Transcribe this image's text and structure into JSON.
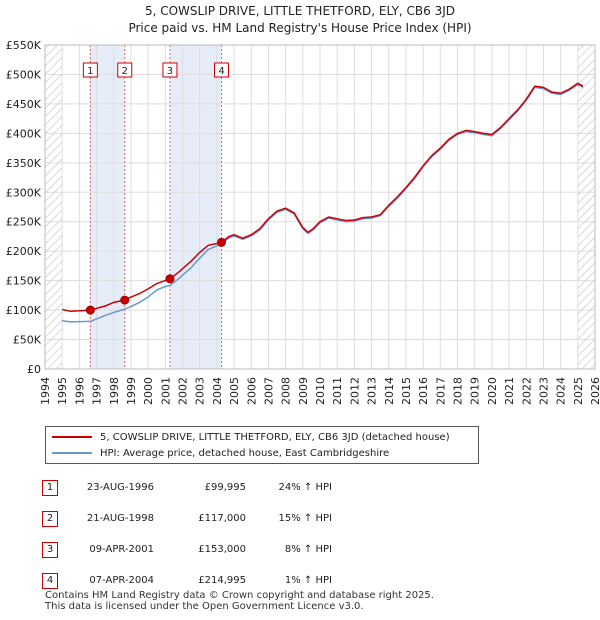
{
  "title_line1": "5, COWSLIP DRIVE, LITTLE THETFORD, ELY, CB6 3JD",
  "title_line2": "Price paid vs. HM Land Registry's House Price Index (HPI)",
  "chart_data": {
    "type": "line",
    "title": "5, COWSLIP DRIVE, LITTLE THETFORD, ELY, CB6 3JD - Price paid vs. HM Land Registry's House Price Index (HPI)",
    "xlim": [
      1994.0,
      2026.0
    ],
    "ylim": [
      0,
      550000
    ],
    "x_ticks": [
      1994,
      1995,
      1996,
      1997,
      1998,
      1999,
      2000,
      2001,
      2002,
      2003,
      2004,
      2005,
      2006,
      2007,
      2008,
      2009,
      2010,
      2011,
      2012,
      2013,
      2014,
      2015,
      2016,
      2017,
      2018,
      2019,
      2020,
      2021,
      2022,
      2023,
      2024,
      2025,
      2026
    ],
    "y_ticks": [
      0,
      50000,
      100000,
      150000,
      200000,
      250000,
      300000,
      350000,
      400000,
      450000,
      500000,
      550000
    ],
    "y_tick_labels": [
      "£0",
      "£50K",
      "£100K",
      "£150K",
      "£200K",
      "£250K",
      "£300K",
      "£350K",
      "£400K",
      "£450K",
      "£500K",
      "£550K"
    ],
    "series": [
      {
        "name": "5, COWSLIP DRIVE, LITTLE THETFORD, ELY, CB6 3JD (detached house)",
        "color": "#cc0000",
        "points": [
          [
            1995.0,
            101000
          ],
          [
            1995.5,
            98000
          ],
          [
            1996.0,
            99000
          ],
          [
            1996.64,
            99995
          ],
          [
            1997.0,
            103000
          ],
          [
            1997.5,
            107000
          ],
          [
            1998.0,
            113000
          ],
          [
            1998.64,
            117000
          ],
          [
            1999.0,
            122000
          ],
          [
            1999.5,
            128000
          ],
          [
            2000.0,
            136000
          ],
          [
            2000.5,
            145000
          ],
          [
            2001.0,
            150000
          ],
          [
            2001.27,
            153000
          ],
          [
            2001.8,
            165000
          ],
          [
            2002.5,
            183000
          ],
          [
            2003.0,
            198000
          ],
          [
            2003.5,
            210000
          ],
          [
            2004.0,
            213000
          ],
          [
            2004.27,
            214995
          ],
          [
            2004.7,
            225000
          ],
          [
            2005.0,
            228000
          ],
          [
            2005.5,
            222000
          ],
          [
            2006.0,
            228000
          ],
          [
            2006.5,
            238000
          ],
          [
            2007.0,
            255000
          ],
          [
            2007.5,
            268000
          ],
          [
            2008.0,
            273000
          ],
          [
            2008.5,
            265000
          ],
          [
            2009.0,
            240000
          ],
          [
            2009.3,
            232000
          ],
          [
            2009.6,
            238000
          ],
          [
            2010.0,
            250000
          ],
          [
            2010.5,
            258000
          ],
          [
            2011.0,
            255000
          ],
          [
            2011.5,
            252000
          ],
          [
            2012.0,
            253000
          ],
          [
            2012.5,
            257000
          ],
          [
            2013.0,
            258000
          ],
          [
            2013.5,
            262000
          ],
          [
            2014.0,
            278000
          ],
          [
            2014.5,
            292000
          ],
          [
            2015.0,
            308000
          ],
          [
            2015.5,
            325000
          ],
          [
            2016.0,
            345000
          ],
          [
            2016.5,
            362000
          ],
          [
            2017.0,
            375000
          ],
          [
            2017.5,
            390000
          ],
          [
            2018.0,
            400000
          ],
          [
            2018.5,
            405000
          ],
          [
            2019.0,
            403000
          ],
          [
            2019.5,
            400000
          ],
          [
            2020.0,
            398000
          ],
          [
            2020.5,
            410000
          ],
          [
            2021.0,
            425000
          ],
          [
            2021.5,
            440000
          ],
          [
            2022.0,
            458000
          ],
          [
            2022.5,
            480000
          ],
          [
            2023.0,
            478000
          ],
          [
            2023.5,
            470000
          ],
          [
            2024.0,
            468000
          ],
          [
            2024.5,
            475000
          ],
          [
            2025.0,
            485000
          ],
          [
            2025.3,
            480000
          ]
        ]
      },
      {
        "name": "HPI: Average price, detached house, East Cambridgeshire",
        "color": "#6699cc",
        "points": [
          [
            1995.0,
            82000
          ],
          [
            1995.5,
            80000
          ],
          [
            1996.0,
            80500
          ],
          [
            1996.64,
            80800
          ],
          [
            1997.0,
            85000
          ],
          [
            1997.5,
            91000
          ],
          [
            1998.0,
            96000
          ],
          [
            1998.64,
            101700
          ],
          [
            1999.0,
            106000
          ],
          [
            1999.5,
            113000
          ],
          [
            2000.0,
            122000
          ],
          [
            2000.5,
            134000
          ],
          [
            2001.0,
            140000
          ],
          [
            2001.27,
            141700
          ],
          [
            2001.8,
            154000
          ],
          [
            2002.5,
            172000
          ],
          [
            2003.0,
            188000
          ],
          [
            2003.5,
            203000
          ],
          [
            2004.0,
            209000
          ],
          [
            2004.27,
            212900
          ],
          [
            2004.7,
            222000
          ],
          [
            2005.0,
            226000
          ],
          [
            2005.5,
            220000
          ],
          [
            2006.0,
            226000
          ],
          [
            2006.5,
            236000
          ],
          [
            2007.0,
            253000
          ],
          [
            2007.5,
            266000
          ],
          [
            2008.0,
            271000
          ],
          [
            2008.5,
            263000
          ],
          [
            2009.0,
            238000
          ],
          [
            2009.3,
            230000
          ],
          [
            2009.6,
            236000
          ],
          [
            2010.0,
            248000
          ],
          [
            2010.5,
            256000
          ],
          [
            2011.0,
            253000
          ],
          [
            2011.5,
            250000
          ],
          [
            2012.0,
            251000
          ],
          [
            2012.5,
            255000
          ],
          [
            2013.0,
            256000
          ],
          [
            2013.5,
            260000
          ],
          [
            2014.0,
            276000
          ],
          [
            2014.5,
            290000
          ],
          [
            2015.0,
            306000
          ],
          [
            2015.5,
            323000
          ],
          [
            2016.0,
            343000
          ],
          [
            2016.5,
            360000
          ],
          [
            2017.0,
            373000
          ],
          [
            2017.5,
            388000
          ],
          [
            2018.0,
            398000
          ],
          [
            2018.5,
            403000
          ],
          [
            2019.0,
            401000
          ],
          [
            2019.5,
            398000
          ],
          [
            2020.0,
            396000
          ],
          [
            2020.5,
            408000
          ],
          [
            2021.0,
            423000
          ],
          [
            2021.5,
            438000
          ],
          [
            2022.0,
            456000
          ],
          [
            2022.5,
            478000
          ],
          [
            2023.0,
            476000
          ],
          [
            2023.5,
            468000
          ],
          [
            2024.0,
            466000
          ],
          [
            2024.5,
            473000
          ],
          [
            2025.0,
            483000
          ],
          [
            2025.3,
            478000
          ]
        ]
      }
    ],
    "sales": [
      {
        "label": "1",
        "date": "23-AUG-1996",
        "x": 1996.64,
        "price": 99995,
        "price_text": "£99,995",
        "hpi_text": "24% ↑ HPI"
      },
      {
        "label": "2",
        "date": "21-AUG-1998",
        "x": 1998.64,
        "price": 117000,
        "price_text": "£117,000",
        "hpi_text": "15% ↑ HPI"
      },
      {
        "label": "3",
        "date": "09-APR-2001",
        "x": 2001.27,
        "price": 153000,
        "price_text": "£153,000",
        "hpi_text": "8% ↑ HPI"
      },
      {
        "label": "4",
        "date": "07-APR-2004",
        "x": 2004.27,
        "price": 214995,
        "price_text": "£214,995",
        "hpi_text": "1% ↑ HPI"
      }
    ],
    "shaded_ranges": [
      [
        1996.64,
        1998.64
      ],
      [
        2001.27,
        2004.27
      ]
    ],
    "hatched_ranges": [
      [
        1994.0,
        1995.0
      ],
      [
        2025.0,
        2026.0
      ]
    ]
  },
  "legend": {
    "property_label": "5, COWSLIP DRIVE, LITTLE THETFORD, ELY, CB6 3JD (detached house)",
    "hpi_label": "HPI: Average price, detached house, East Cambridgeshire",
    "property_color": "#cc0000",
    "hpi_color": "#6699cc"
  },
  "footer": {
    "line1": "Contains HM Land Registry data © Crown copyright and database right 2025.",
    "line2": "This data is licensed under the Open Government Licence v3.0."
  }
}
